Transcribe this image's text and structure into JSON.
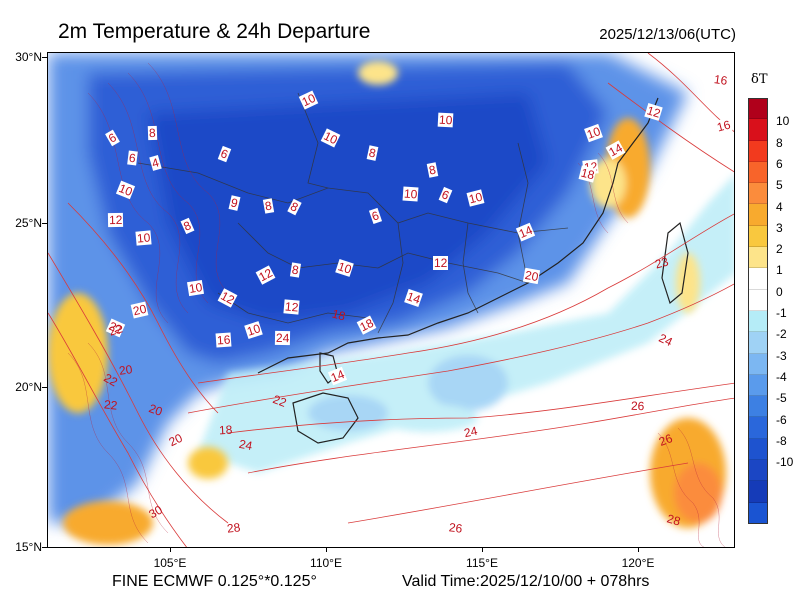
{
  "header": {
    "title": "2m Temperature & 24h Departure",
    "datetime": "2025/12/13/06(UTC)"
  },
  "axes": {
    "lat_labels": [
      "30°N",
      "25°N",
      "20°N",
      "15°N"
    ],
    "lon_labels": [
      "105°E",
      "110°E",
      "115°E",
      "120°E"
    ]
  },
  "footer": {
    "model": "FINE ECMWF 0.125°*0.125°",
    "valid_time": "Valid Time:2025/12/10/00 + 078hrs"
  },
  "colorbar": {
    "title": "δT",
    "labels": [
      "10",
      "8",
      "6",
      "5",
      "4",
      "3",
      "2",
      "1",
      "0",
      "-1",
      "-2",
      "-3",
      "-4",
      "-5",
      "-6",
      "-8",
      "-10"
    ],
    "colors": [
      "#b0001b",
      "#d9101b",
      "#f23a1e",
      "#f8642a",
      "#fb8c3c",
      "#f8aa2e",
      "#f9c83e",
      "#fde48a",
      "#ffffff",
      "#ffffff",
      "#b5ecf7",
      "#9fd2f5",
      "#7cb7f2",
      "#5a9bec",
      "#3d80e3",
      "#2a67db",
      "#1e53cf",
      "#1b46c4",
      "#153bb8",
      "#1a54d2"
    ]
  },
  "contour_labels": [
    "6",
    "6",
    "4",
    "6",
    "8",
    "10",
    "8",
    "8",
    "10",
    "10",
    "10",
    "12",
    "12",
    "14",
    "16",
    "16",
    "10",
    "12",
    "8",
    "9",
    "8",
    "8",
    "10",
    "6",
    "10",
    "10",
    "12",
    "8",
    "10",
    "6",
    "12",
    "14",
    "18",
    "10",
    "12",
    "12",
    "10",
    "14",
    "16",
    "18",
    "20",
    "20",
    "22",
    "24",
    "14",
    "18",
    "20",
    "22",
    "22",
    "22",
    "20",
    "18",
    "20",
    "24",
    "24",
    "24",
    "26",
    "26",
    "28",
    "28",
    "30",
    "26",
    "23",
    "22"
  ]
}
